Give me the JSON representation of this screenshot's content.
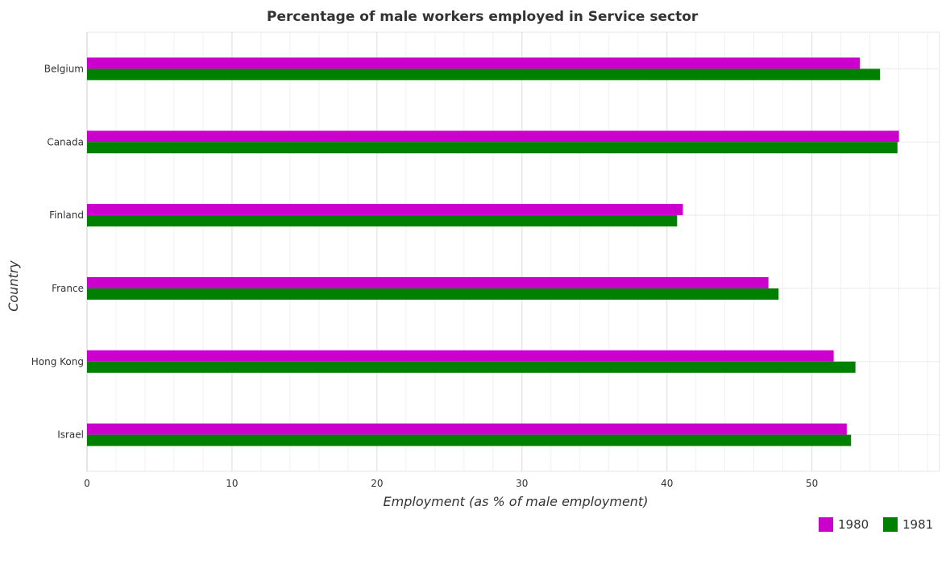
{
  "chart_data": {
    "type": "bar",
    "orientation": "horizontal",
    "title": "Percentage of male workers employed in Service sector",
    "xlabel": "Employment (as % of male employment)",
    "ylabel": "Country",
    "categories": [
      "Belgium",
      "Canada",
      "Finland",
      "France",
      "Hong Kong",
      "Israel"
    ],
    "series": [
      {
        "name": "1980",
        "color": "#cc00cc",
        "values": [
          53.3,
          56.0,
          41.1,
          47.0,
          51.5,
          52.4
        ]
      },
      {
        "name": "1981",
        "color": "#008000",
        "values": [
          54.7,
          55.9,
          40.7,
          47.7,
          53.0,
          52.7
        ]
      }
    ],
    "xlim": [
      0,
      58.8
    ],
    "xticks": [
      0,
      10,
      20,
      30,
      40,
      50
    ],
    "grid": true,
    "legend_position": "bottom-right"
  }
}
